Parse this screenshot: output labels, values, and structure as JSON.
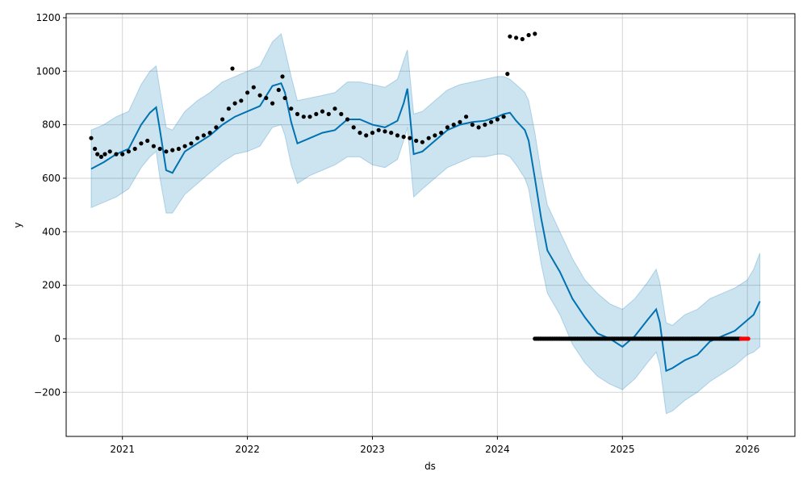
{
  "chart_data": {
    "type": "line",
    "title": "",
    "xlabel": "ds",
    "ylabel": "y",
    "xlim": [
      2020.55,
      2026.38
    ],
    "ylim": [
      -365,
      1215
    ],
    "grid": true,
    "x_ticks": [
      2021,
      2022,
      2023,
      2024,
      2025,
      2026
    ],
    "x_tick_labels": [
      "2021",
      "2022",
      "2023",
      "2024",
      "2025",
      "2026"
    ],
    "y_ticks": [
      -200,
      0,
      200,
      400,
      600,
      800,
      1000,
      1200
    ],
    "y_tick_labels": [
      "−200",
      "0",
      "200",
      "400",
      "600",
      "800",
      "1000",
      "1200"
    ],
    "colors": {
      "forecast": "#0072B2",
      "uncertainty_fill": "#0072B2",
      "observed": "#000000",
      "recent_points": "#ff0000",
      "grid": "#d3d3d3"
    },
    "forecast": {
      "x": [
        2020.75,
        2020.85,
        2020.95,
        2021.05,
        2021.15,
        2021.22,
        2021.27,
        2021.3,
        2021.35,
        2021.4,
        2021.5,
        2021.6,
        2021.7,
        2021.8,
        2021.9,
        2022.0,
        2022.1,
        2022.2,
        2022.27,
        2022.3,
        2022.35,
        2022.4,
        2022.5,
        2022.6,
        2022.7,
        2022.8,
        2022.9,
        2023.0,
        2023.1,
        2023.2,
        2023.25,
        2023.28,
        2023.33,
        2023.4,
        2023.5,
        2023.6,
        2023.7,
        2023.8,
        2023.9,
        2024.0,
        2024.05,
        2024.1,
        2024.15,
        2024.22,
        2024.25,
        2024.3,
        2024.35,
        2024.4,
        2024.5,
        2024.6,
        2024.7,
        2024.8,
        2024.9,
        2025.0,
        2025.1,
        2025.2,
        2025.27,
        2025.3,
        2025.35,
        2025.4,
        2025.5,
        2025.6,
        2025.7,
        2025.8,
        2025.9,
        2026.0,
        2026.05,
        2026.1
      ],
      "y": [
        635,
        660,
        690,
        710,
        800,
        845,
        865,
        780,
        630,
        620,
        700,
        730,
        760,
        800,
        830,
        850,
        870,
        945,
        955,
        920,
        810,
        730,
        750,
        770,
        780,
        820,
        820,
        800,
        790,
        815,
        880,
        935,
        690,
        700,
        740,
        780,
        800,
        810,
        815,
        830,
        840,
        845,
        815,
        780,
        740,
        600,
        450,
        330,
        250,
        150,
        80,
        20,
        0,
        -30,
        10,
        70,
        110,
        60,
        -120,
        -110,
        -80,
        -60,
        -10,
        10,
        30,
        70,
        90,
        140
      ]
    },
    "uncertainty_band": {
      "x": [
        2020.75,
        2020.85,
        2020.95,
        2021.05,
        2021.15,
        2021.22,
        2021.27,
        2021.3,
        2021.35,
        2021.4,
        2021.5,
        2021.6,
        2021.7,
        2021.8,
        2021.9,
        2022.0,
        2022.1,
        2022.2,
        2022.27,
        2022.3,
        2022.35,
        2022.4,
        2022.5,
        2022.6,
        2022.7,
        2022.8,
        2022.9,
        2023.0,
        2023.1,
        2023.2,
        2023.25,
        2023.28,
        2023.33,
        2023.4,
        2023.5,
        2023.6,
        2023.7,
        2023.8,
        2023.9,
        2024.0,
        2024.05,
        2024.1,
        2024.15,
        2024.22,
        2024.25,
        2024.3,
        2024.35,
        2024.4,
        2024.5,
        2024.6,
        2024.7,
        2024.8,
        2024.9,
        2025.0,
        2025.1,
        2025.2,
        2025.27,
        2025.3,
        2025.35,
        2025.4,
        2025.5,
        2025.6,
        2025.7,
        2025.8,
        2025.9,
        2026.0,
        2026.05,
        2026.1
      ],
      "lower": [
        490,
        510,
        530,
        560,
        640,
        680,
        700,
        600,
        470,
        470,
        540,
        580,
        620,
        660,
        690,
        700,
        720,
        790,
        800,
        760,
        650,
        580,
        610,
        630,
        650,
        680,
        680,
        650,
        640,
        670,
        740,
        790,
        530,
        560,
        600,
        640,
        660,
        680,
        680,
        690,
        690,
        680,
        650,
        600,
        560,
        420,
        280,
        170,
        90,
        -20,
        -90,
        -140,
        -170,
        -190,
        -150,
        -90,
        -50,
        -100,
        -280,
        -270,
        -230,
        -200,
        -160,
        -130,
        -100,
        -60,
        -50,
        -30
      ],
      "upper": [
        780,
        800,
        830,
        850,
        950,
        1000,
        1020,
        930,
        790,
        780,
        850,
        890,
        920,
        960,
        980,
        1000,
        1020,
        1110,
        1140,
        1080,
        980,
        890,
        900,
        910,
        920,
        960,
        960,
        950,
        940,
        970,
        1040,
        1080,
        840,
        850,
        890,
        930,
        950,
        960,
        970,
        980,
        980,
        970,
        950,
        920,
        890,
        770,
        620,
        500,
        400,
        300,
        220,
        170,
        130,
        110,
        150,
        210,
        260,
        210,
        60,
        50,
        90,
        110,
        150,
        170,
        190,
        220,
        260,
        320
      ]
    },
    "observed": {
      "x": [
        2020.75,
        2020.78,
        2020.8,
        2020.83,
        2020.86,
        2020.9,
        2020.95,
        2021.0,
        2021.05,
        2021.1,
        2021.15,
        2021.2,
        2021.25,
        2021.3,
        2021.35,
        2021.4,
        2021.45,
        2021.5,
        2021.55,
        2021.6,
        2021.65,
        2021.7,
        2021.75,
        2021.8,
        2021.85,
        2021.88,
        2021.9,
        2021.95,
        2022.0,
        2022.05,
        2022.1,
        2022.15,
        2022.2,
        2022.25,
        2022.28,
        2022.3,
        2022.35,
        2022.4,
        2022.45,
        2022.5,
        2022.55,
        2022.6,
        2022.65,
        2022.7,
        2022.75,
        2022.8,
        2022.85,
        2022.9,
        2022.95,
        2023.0,
        2023.05,
        2023.1,
        2023.15,
        2023.2,
        2023.25,
        2023.3,
        2023.35,
        2023.4,
        2023.45,
        2023.5,
        2023.55,
        2023.6,
        2023.65,
        2023.7,
        2023.75,
        2023.8,
        2023.85,
        2023.9,
        2023.95,
        2024.0,
        2024.05,
        2024.08,
        2024.1,
        2024.15,
        2024.2,
        2024.25,
        2024.3
      ],
      "y": [
        750,
        710,
        690,
        680,
        690,
        700,
        690,
        690,
        700,
        710,
        730,
        740,
        720,
        710,
        700,
        705,
        710,
        720,
        730,
        750,
        760,
        770,
        790,
        820,
        860,
        1010,
        880,
        890,
        920,
        940,
        910,
        900,
        880,
        930,
        980,
        900,
        860,
        840,
        830,
        830,
        840,
        850,
        840,
        860,
        840,
        820,
        790,
        770,
        760,
        770,
        780,
        775,
        770,
        760,
        755,
        750,
        740,
        735,
        750,
        760,
        770,
        790,
        800,
        810,
        830,
        800,
        790,
        800,
        810,
        820,
        830,
        990,
        1130,
        1125,
        1120,
        1135,
        1140
      ]
    },
    "zero_points": {
      "x_start": 2024.3,
      "x_end": 2025.95,
      "y": 0
    },
    "recent_points": {
      "x_start": 2025.95,
      "x_end": 2026.02,
      "y": 0
    }
  }
}
